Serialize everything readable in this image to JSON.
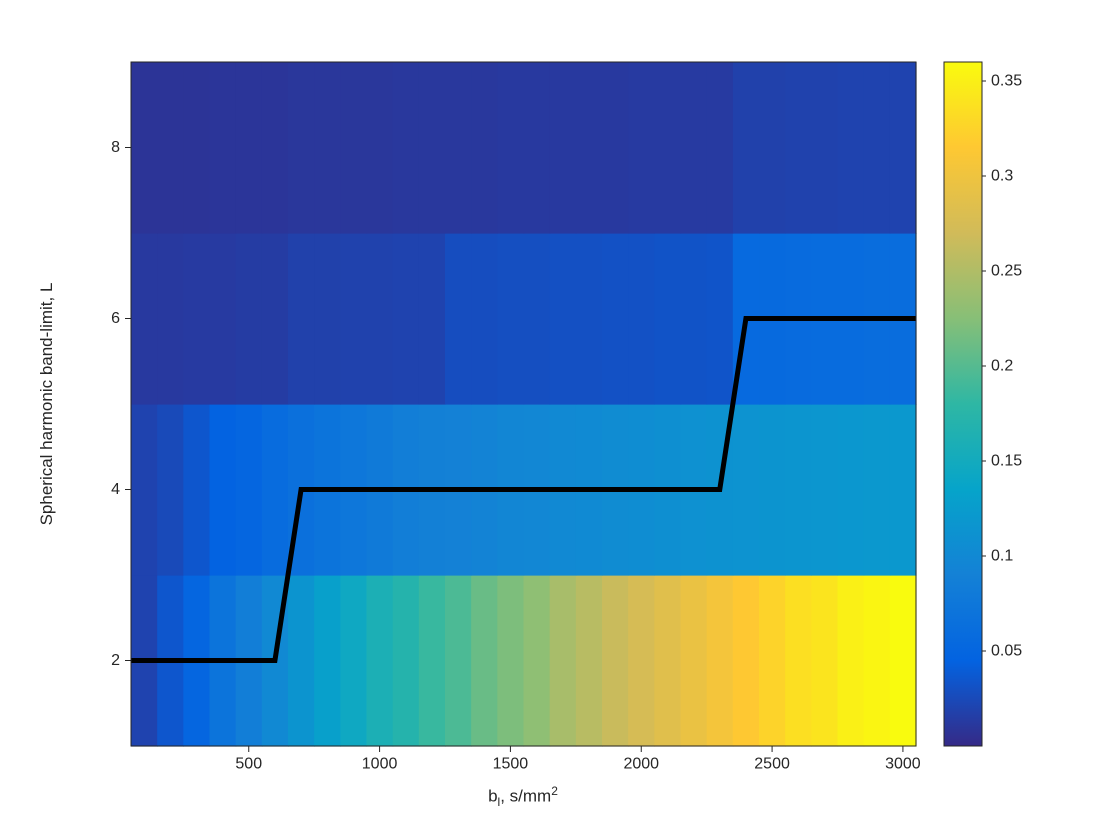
{
  "figure": {
    "background": "#ffffff",
    "text_color": "#262626"
  },
  "chart_data": {
    "type": "heatmap",
    "title": "",
    "xlabel": "b_l, s/mm^2",
    "xlabel_parts": {
      "base": "b",
      "sub": "l",
      "mid": ", s/mm",
      "sup": "2"
    },
    "ylabel": "Spherical harmonic band-limit, L",
    "xlim": [
      50,
      3050
    ],
    "ylim": [
      1,
      9
    ],
    "x_ticks": [
      500,
      1000,
      1500,
      2000,
      2500,
      3000
    ],
    "y_ticks": [
      2,
      4,
      6,
      8
    ],
    "x_cell_width": 100,
    "x_centers": [
      100,
      200,
      300,
      400,
      500,
      600,
      700,
      800,
      900,
      1000,
      1100,
      1200,
      1300,
      1400,
      1500,
      1600,
      1700,
      1800,
      1900,
      2000,
      2100,
      2200,
      2300,
      2400,
      2500,
      2600,
      2700,
      2800,
      2900,
      3000
    ],
    "rows": [
      {
        "L": 2,
        "y0": 1,
        "y1": 3,
        "values": [
          0.02,
          0.035,
          0.05,
          0.07,
          0.085,
          0.1,
          0.115,
          0.13,
          0.145,
          0.16,
          0.17,
          0.185,
          0.195,
          0.21,
          0.22,
          0.23,
          0.245,
          0.255,
          0.265,
          0.275,
          0.285,
          0.295,
          0.305,
          0.315,
          0.325,
          0.335,
          0.34,
          0.35,
          0.355,
          0.36
        ]
      },
      {
        "L": 4,
        "y0": 3,
        "y1": 5,
        "values": [
          0.02,
          0.025,
          0.035,
          0.045,
          0.05,
          0.058,
          0.065,
          0.07,
          0.075,
          0.08,
          0.085,
          0.088,
          0.09,
          0.093,
          0.096,
          0.098,
          0.1,
          0.102,
          0.104,
          0.106,
          0.108,
          0.11,
          0.112,
          0.113,
          0.115,
          0.116,
          0.117,
          0.118,
          0.119,
          0.12
        ]
      },
      {
        "L": 6,
        "y0": 5,
        "y1": 7,
        "values": [
          0.012,
          0.012,
          0.013,
          0.013,
          0.014,
          0.014,
          0.018,
          0.018,
          0.019,
          0.019,
          0.02,
          0.02,
          0.028,
          0.028,
          0.029,
          0.029,
          0.03,
          0.03,
          0.031,
          0.031,
          0.032,
          0.032,
          0.033,
          0.055,
          0.056,
          0.057,
          0.058,
          0.059,
          0.06,
          0.06
        ]
      },
      {
        "L": 8,
        "y0": 7,
        "y1": 9,
        "values": [
          0.008,
          0.008,
          0.008,
          0.009,
          0.009,
          0.009,
          0.01,
          0.01,
          0.01,
          0.01,
          0.011,
          0.011,
          0.011,
          0.011,
          0.012,
          0.012,
          0.012,
          0.012,
          0.012,
          0.013,
          0.013,
          0.013,
          0.013,
          0.018,
          0.018,
          0.019,
          0.019,
          0.02,
          0.02,
          0.02
        ]
      }
    ],
    "value_range": [
      0,
      0.36
    ],
    "colormap_name": "parula",
    "colormap_stops": [
      "#352a87",
      "#0363e1",
      "#1481d6",
      "#06a4ca",
      "#2eb7a4",
      "#87bf77",
      "#d1bb59",
      "#fec832",
      "#f9fb0e"
    ],
    "colorbar_ticks": [
      0.05,
      0.1,
      0.15,
      0.2,
      0.25,
      0.3,
      0.35
    ],
    "step_line": {
      "color": "#000000",
      "width": 5,
      "points": [
        [
          50,
          2
        ],
        [
          600,
          2
        ],
        [
          700,
          4
        ],
        [
          2300,
          4
        ],
        [
          2400,
          6
        ],
        [
          3050,
          6
        ]
      ]
    }
  }
}
